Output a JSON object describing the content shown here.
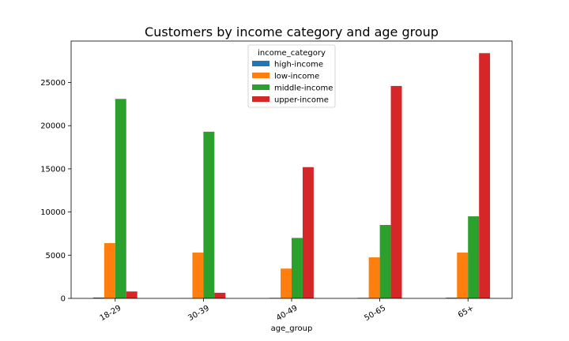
{
  "chart_data": {
    "type": "bar",
    "title": "Customers by income category and age group",
    "xlabel": "age_group",
    "ylabel": "",
    "categories": [
      "18-29",
      "30-39",
      "40-49",
      "50-65",
      "65+"
    ],
    "ylim": [
      0,
      29800
    ],
    "yticks": [
      0,
      5000,
      10000,
      15000,
      20000,
      25000
    ],
    "grid": false,
    "legend": {
      "title": "income_category",
      "placement": "top-center"
    },
    "series": [
      {
        "name": "high-income",
        "color": "#1f77b4",
        "values": [
          100,
          20,
          60,
          60,
          80
        ]
      },
      {
        "name": "low-income",
        "color": "#ff7f0e",
        "values": [
          6400,
          5300,
          3450,
          4750,
          5300
        ]
      },
      {
        "name": "middle-income",
        "color": "#2ca02c",
        "values": [
          23100,
          19300,
          7000,
          8500,
          9500
        ]
      },
      {
        "name": "upper-income",
        "color": "#d62728",
        "values": [
          800,
          650,
          15200,
          24600,
          28400
        ]
      }
    ]
  }
}
